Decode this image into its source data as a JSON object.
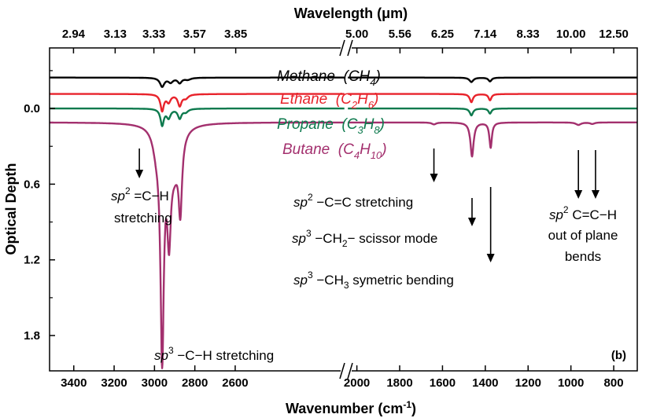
{
  "chart_data": {
    "type": "line",
    "panel_label": "(b)",
    "xlabel": "Wavenumber",
    "xlabel_unit": "(cm",
    "xlabel_unit_sup": "-1",
    "xlabel_unit_close": ")",
    "x2label": "Wavelength",
    "x2label_unit": "(μm)",
    "ylabel": "Optical Depth",
    "y_inverted": true,
    "ylim": [
      -0.48,
      2.08
    ],
    "y_ticks": [
      "0.0",
      "0.6",
      "1.2",
      "1.8"
    ],
    "x_axis_break": true,
    "x_segments": [
      {
        "from": 3520,
        "to": 2050
      },
      {
        "from": 2050,
        "to": 690
      }
    ],
    "x_ticks": [
      "3400",
      "3200",
      "3000",
      "2800",
      "2600",
      "2000",
      "1800",
      "1600",
      "1400",
      "1200",
      "1000",
      "800"
    ],
    "x2_ticks": [
      "2.94",
      "3.13",
      "3.33",
      "3.57",
      "3.85",
      "5.00",
      "5.56",
      "6.25",
      "7.14",
      "8.33",
      "10.00",
      "12.50"
    ],
    "series": [
      {
        "name": "Methane",
        "formula": "(CH",
        "sub": "4",
        "tail": ")",
        "color": "#000000",
        "offset": -0.245,
        "peaks": [
          [
            2962,
            0.07,
            13
          ],
          [
            2920,
            0.035,
            14
          ],
          [
            2875,
            0.04,
            12
          ],
          [
            2835,
            0.015,
            18
          ],
          [
            1465,
            0.035,
            11
          ],
          [
            1378,
            0.03,
            9
          ]
        ]
      },
      {
        "name": "Ethane",
        "formula": "(C",
        "sub": "2",
        "tail": "H",
        "sub2": "6",
        "tail2": ")",
        "color": "#e8232b",
        "offset": -0.115,
        "peaks": [
          [
            2962,
            0.13,
            10
          ],
          [
            2930,
            0.06,
            12
          ],
          [
            2875,
            0.09,
            11
          ],
          [
            2845,
            0.03,
            15
          ],
          [
            1465,
            0.065,
            9
          ],
          [
            1378,
            0.05,
            8
          ]
        ]
      },
      {
        "name": "Propane",
        "formula": "(C",
        "sub": "3",
        "tail": "H",
        "sub2": "8",
        "tail2": ")",
        "color": "#0e7a4e",
        "offset": 0.0,
        "peaks": [
          [
            2962,
            0.13,
            10
          ],
          [
            2930,
            0.07,
            12
          ],
          [
            2875,
            0.075,
            11
          ],
          [
            2845,
            0.025,
            14
          ],
          [
            1465,
            0.055,
            9
          ],
          [
            1378,
            0.04,
            8
          ]
        ]
      },
      {
        "name": "Butane",
        "formula": "(C",
        "sub": "4",
        "tail": "H",
        "sub2": "10",
        "tail2": ")",
        "color": "#a3306e",
        "offset": 0.11,
        "peaks": [
          [
            2962,
            1.76,
            10
          ],
          [
            2928,
            0.72,
            11
          ],
          [
            2872,
            0.56,
            10
          ],
          [
            2900,
            0.3,
            30
          ],
          [
            2990,
            0.15,
            22
          ],
          [
            1462,
            0.27,
            9
          ],
          [
            1375,
            0.2,
            7
          ],
          [
            1640,
            0.015,
            12
          ],
          [
            965,
            0.02,
            14
          ],
          [
            900,
            0.012,
            12
          ]
        ]
      }
    ],
    "annotations": [
      {
        "pre": "sp",
        "sup": "2",
        "post": " =C−H",
        "line2": "stretching",
        "target_x": 3075
      },
      {
        "pre": "sp",
        "sup": "3",
        "post": " −C−H stretching",
        "target_x": 2962
      },
      {
        "pre": "sp",
        "sup": "2",
        "post": " −C=C stretching",
        "target_x": 1640
      },
      {
        "pre": "sp",
        "sup": "3",
        "post": " −CH",
        "sub": "2",
        "post2": "− scissor mode",
        "target_x": 1462
      },
      {
        "pre": "sp",
        "sup": "3",
        "post": " −CH",
        "sub": "3",
        "post2": " symetric bending",
        "target_x": 1375
      },
      {
        "pre": "sp",
        "sup": "2",
        "post": " C=C−H",
        "line2": "out of plane",
        "line3": "bends",
        "target_x": [
          965,
          885
        ]
      }
    ]
  }
}
